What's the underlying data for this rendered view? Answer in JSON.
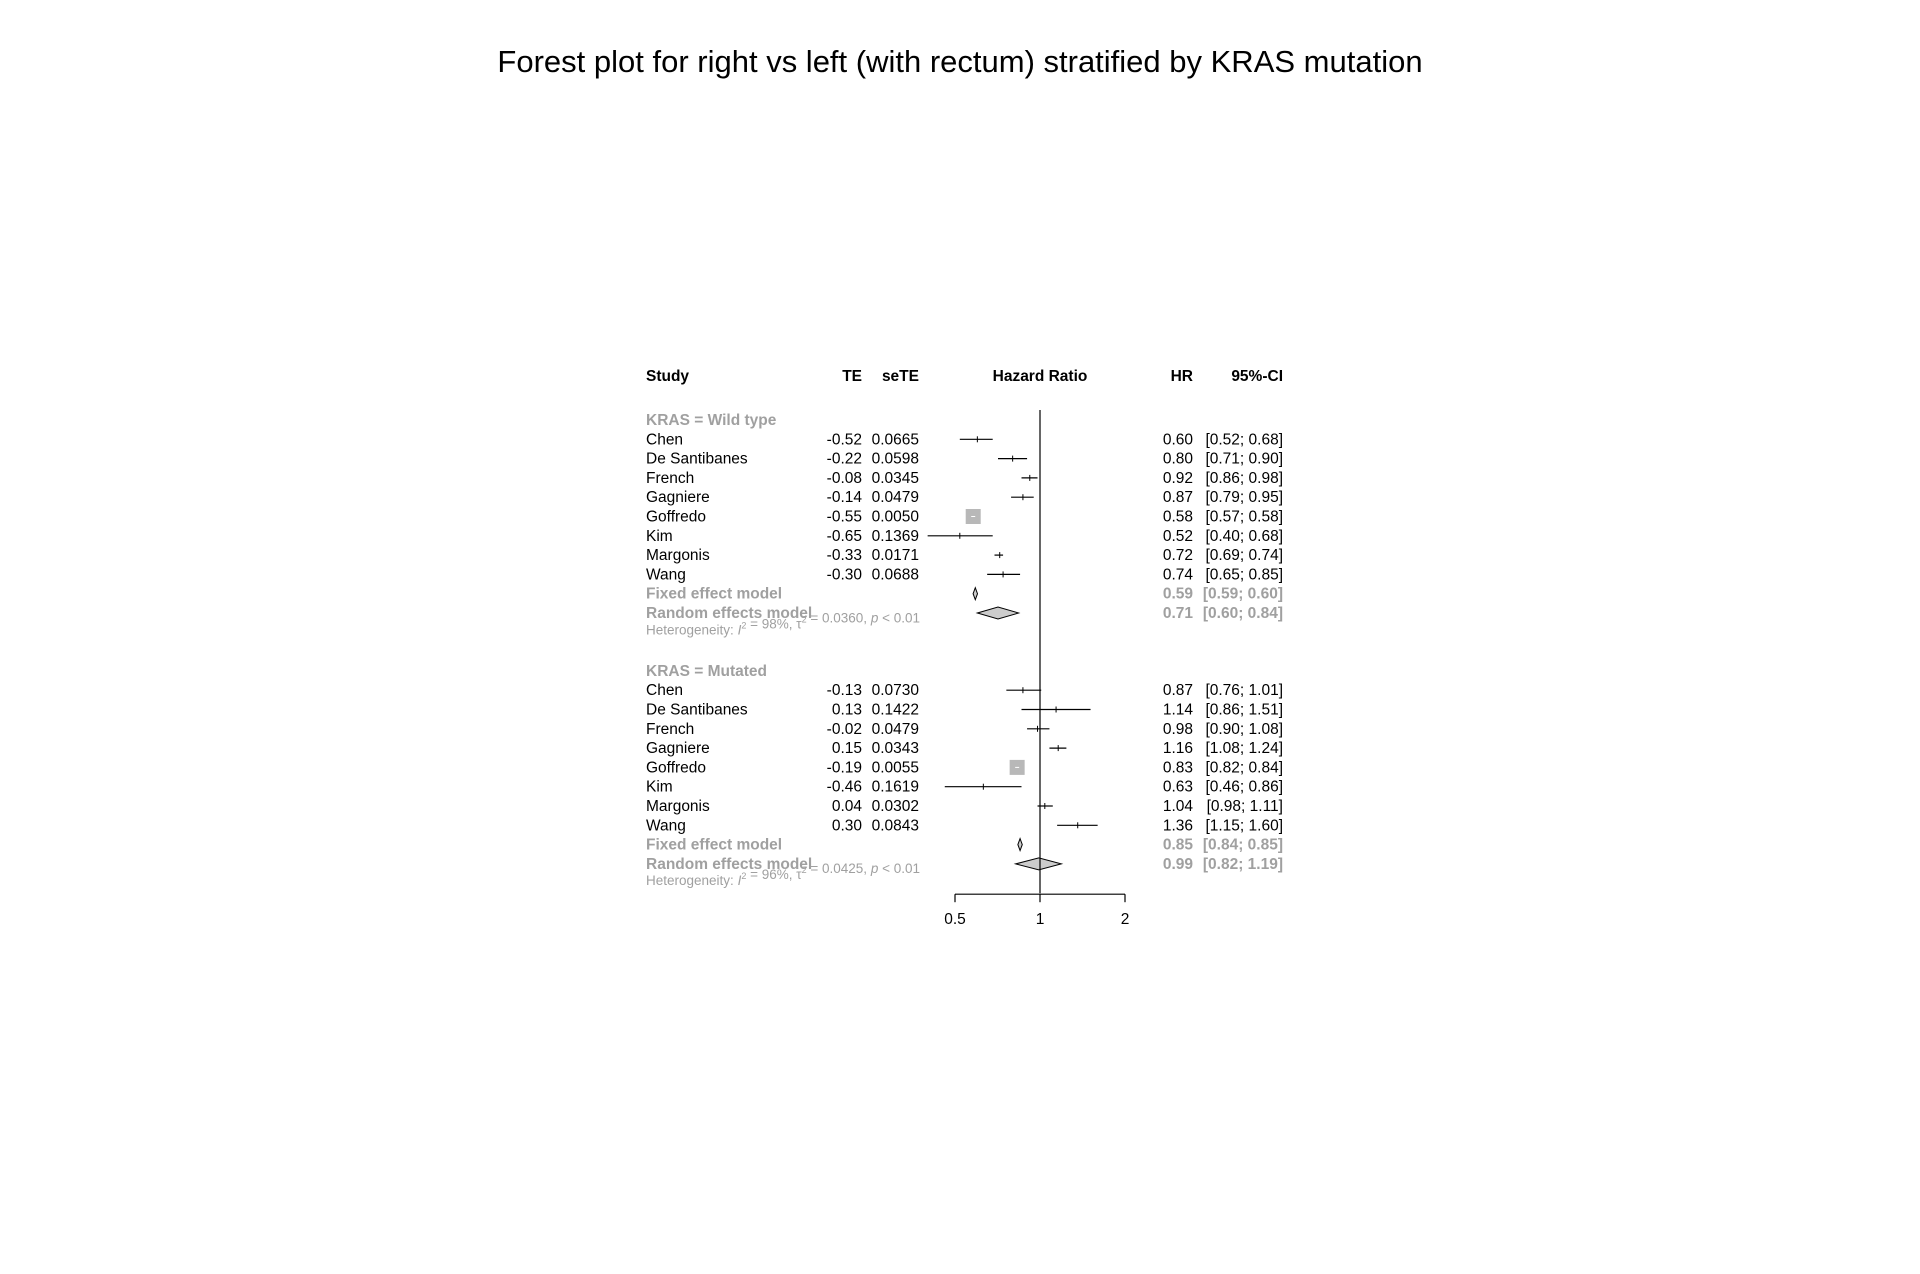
{
  "title": "Forest plot for right vs left (with rectum) stratified by KRAS mutation",
  "chart_data": {
    "type": "forest",
    "columns": {
      "study": "Study",
      "te": "TE",
      "sete": "seTE",
      "plot": "Hazard Ratio",
      "hr": "HR",
      "ci": "95%-CI"
    },
    "xscale": "log",
    "xlim": [
      0.5,
      2
    ],
    "xticks": [
      "0.5",
      "1",
      "2"
    ],
    "null_line": 1,
    "colors": {
      "line": "#000000",
      "pooled": "#a0a0a0",
      "square": "#b8b8b8",
      "diamond_fill": "#cccccc"
    },
    "groups": [
      {
        "label": "KRAS = Wild type",
        "studies": [
          {
            "name": "Chen",
            "te": "-0.52",
            "sete": "0.0665",
            "hr": 0.6,
            "lo": 0.52,
            "hi": 0.68,
            "hr_text": "0.60",
            "ci_text": "[0.52; 0.68]"
          },
          {
            "name": "De Santibanes",
            "te": "-0.22",
            "sete": "0.0598",
            "hr": 0.8,
            "lo": 0.71,
            "hi": 0.9,
            "hr_text": "0.80",
            "ci_text": "[0.71; 0.90]"
          },
          {
            "name": "French",
            "te": "-0.08",
            "sete": "0.0345",
            "hr": 0.92,
            "lo": 0.86,
            "hi": 0.98,
            "hr_text": "0.92",
            "ci_text": "[0.86; 0.98]"
          },
          {
            "name": "Gagniere",
            "te": "-0.14",
            "sete": "0.0479",
            "hr": 0.87,
            "lo": 0.79,
            "hi": 0.95,
            "hr_text": "0.87",
            "ci_text": "[0.79; 0.95]"
          },
          {
            "name": "Goffredo",
            "te": "-0.55",
            "sete": "0.0050",
            "hr": 0.58,
            "lo": 0.57,
            "hi": 0.58,
            "hr_text": "0.58",
            "ci_text": "[0.57; 0.58]",
            "square": true
          },
          {
            "name": "Kim",
            "te": "-0.65",
            "sete": "0.1369",
            "hr": 0.52,
            "lo": 0.4,
            "hi": 0.68,
            "hr_text": "0.52",
            "ci_text": "[0.40; 0.68]"
          },
          {
            "name": "Margonis",
            "te": "-0.33",
            "sete": "0.0171",
            "hr": 0.72,
            "lo": 0.69,
            "hi": 0.74,
            "hr_text": "0.72",
            "ci_text": "[0.69; 0.74]"
          },
          {
            "name": "Wang",
            "te": "-0.30",
            "sete": "0.0688",
            "hr": 0.74,
            "lo": 0.65,
            "hi": 0.85,
            "hr_text": "0.74",
            "ci_text": "[0.65; 0.85]"
          }
        ],
        "fixed": {
          "label": "Fixed effect model",
          "hr": 0.59,
          "lo": 0.59,
          "hi": 0.6,
          "hr_text": "0.59",
          "ci_text": "[0.59; 0.60]"
        },
        "random": {
          "label": "Random effects model",
          "hr": 0.71,
          "lo": 0.6,
          "hi": 0.84,
          "hr_text": "0.71",
          "ci_text": "[0.60; 0.84]"
        },
        "heterogeneity": {
          "prefix": "Heterogeneity: ",
          "i2_symbol": "I",
          "i2_value": " = 98%, ",
          "tau_symbol": "τ",
          "tau_value": " = 0.0360, ",
          "p_symbol": "p",
          "p_value": " < 0.01"
        }
      },
      {
        "label": "KRAS = Mutated",
        "studies": [
          {
            "name": "Chen",
            "te": "-0.13",
            "sete": "0.0730",
            "hr": 0.87,
            "lo": 0.76,
            "hi": 1.01,
            "hr_text": "0.87",
            "ci_text": "[0.76; 1.01]"
          },
          {
            "name": "De Santibanes",
            "te": "0.13",
            "sete": "0.1422",
            "hr": 1.14,
            "lo": 0.86,
            "hi": 1.51,
            "hr_text": "1.14",
            "ci_text": "[0.86; 1.51]"
          },
          {
            "name": "French",
            "te": "-0.02",
            "sete": "0.0479",
            "hr": 0.98,
            "lo": 0.9,
            "hi": 1.08,
            "hr_text": "0.98",
            "ci_text": "[0.90; 1.08]"
          },
          {
            "name": "Gagniere",
            "te": "0.15",
            "sete": "0.0343",
            "hr": 1.16,
            "lo": 1.08,
            "hi": 1.24,
            "hr_text": "1.16",
            "ci_text": "[1.08; 1.24]"
          },
          {
            "name": "Goffredo",
            "te": "-0.19",
            "sete": "0.0055",
            "hr": 0.83,
            "lo": 0.82,
            "hi": 0.84,
            "hr_text": "0.83",
            "ci_text": "[0.82; 0.84]",
            "square": true
          },
          {
            "name": "Kim",
            "te": "-0.46",
            "sete": "0.1619",
            "hr": 0.63,
            "lo": 0.46,
            "hi": 0.86,
            "hr_text": "0.63",
            "ci_text": "[0.46; 0.86]"
          },
          {
            "name": "Margonis",
            "te": "0.04",
            "sete": "0.0302",
            "hr": 1.04,
            "lo": 0.98,
            "hi": 1.11,
            "hr_text": "1.04",
            "ci_text": "[0.98; 1.11]"
          },
          {
            "name": "Wang",
            "te": "0.30",
            "sete": "0.0843",
            "hr": 1.36,
            "lo": 1.15,
            "hi": 1.6,
            "hr_text": "1.36",
            "ci_text": "[1.15; 1.60]"
          }
        ],
        "fixed": {
          "label": "Fixed effect model",
          "hr": 0.85,
          "lo": 0.84,
          "hi": 0.85,
          "hr_text": "0.85",
          "ci_text": "[0.84; 0.85]"
        },
        "random": {
          "label": "Random effects model",
          "hr": 0.99,
          "lo": 0.82,
          "hi": 1.19,
          "hr_text": "0.99",
          "ci_text": "[0.82; 1.19]"
        },
        "heterogeneity": {
          "prefix": "Heterogeneity: ",
          "i2_symbol": "I",
          "i2_value": " = 96%, ",
          "tau_symbol": "τ",
          "tau_value": " = 0.0425, ",
          "p_symbol": "p",
          "p_value": " < 0.01"
        }
      }
    ]
  }
}
